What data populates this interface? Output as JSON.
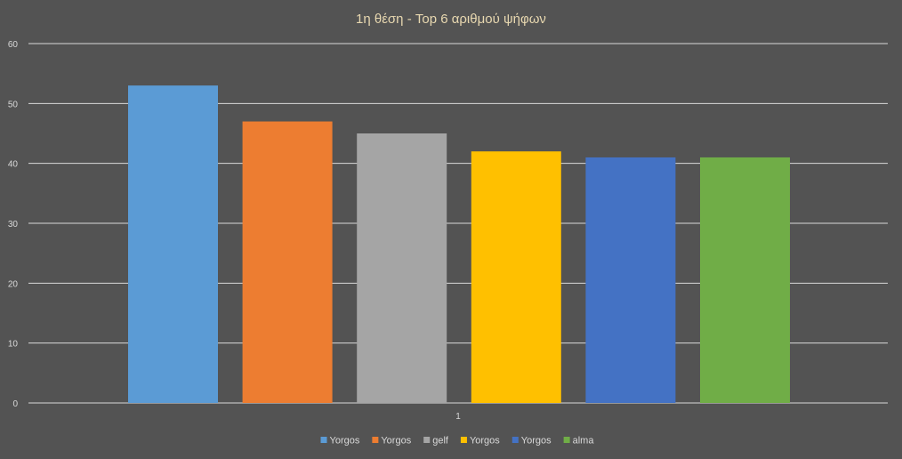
{
  "chart_data": {
    "type": "bar",
    "title": "1η θέση - Top 6 αριθμού ψήφων",
    "categories": [
      "1"
    ],
    "series": [
      {
        "name": "Yorgos",
        "values": [
          53
        ],
        "color": "#5B9BD5"
      },
      {
        "name": "Yorgos",
        "values": [
          47
        ],
        "color": "#ED7D31"
      },
      {
        "name": "gelf",
        "values": [
          45
        ],
        "color": "#A5A5A5"
      },
      {
        "name": "Yorgos",
        "values": [
          42
        ],
        "color": "#FFC000"
      },
      {
        "name": "Yorgos",
        "values": [
          41
        ],
        "color": "#4472C4"
      },
      {
        "name": "alma",
        "values": [
          41
        ],
        "color": "#70AD47"
      }
    ],
    "xlabel": "",
    "ylabel": "",
    "ylim": [
      0,
      60
    ],
    "yticks": [
      0,
      10,
      20,
      30,
      40,
      50,
      60
    ],
    "grid": true,
    "legend": "bottom",
    "colors": {
      "background": "#535353",
      "text": "#D9D9D9",
      "title": "#E8D8B0",
      "grid": "#D9D9D9"
    }
  }
}
